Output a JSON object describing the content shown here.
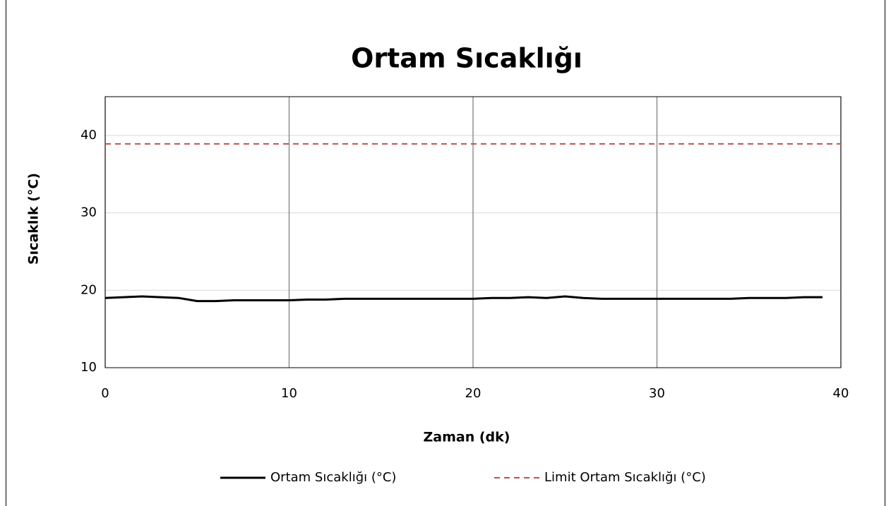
{
  "chart_data": {
    "type": "line",
    "title": "Ortam Sıcaklığı",
    "xlabel": "Zaman (dk)",
    "ylabel": "Sıcaklık (°C)",
    "xlim": [
      0,
      40
    ],
    "xticks": [
      0,
      10,
      20,
      30,
      40
    ],
    "ylim": [
      10,
      45
    ],
    "yticks": [
      10,
      20,
      30,
      40
    ],
    "grid": true,
    "legend": "bottom",
    "series": [
      {
        "name": "Ortam Sıcaklığı (°C)",
        "color": "#000000",
        "dash": false,
        "x": [
          0,
          1,
          2,
          3,
          4,
          5,
          6,
          7,
          8,
          9,
          10,
          11,
          12,
          13,
          14,
          15,
          16,
          17,
          18,
          19,
          20,
          21,
          22,
          23,
          24,
          25,
          26,
          27,
          28,
          29,
          30,
          31,
          32,
          33,
          34,
          35,
          36,
          37,
          38,
          39
        ],
        "values": [
          19.0,
          19.1,
          19.2,
          19.1,
          19.0,
          18.6,
          18.6,
          18.7,
          18.7,
          18.7,
          18.7,
          18.8,
          18.8,
          18.9,
          18.9,
          18.9,
          18.9,
          18.9,
          18.9,
          18.9,
          18.9,
          19.0,
          19.0,
          19.1,
          19.0,
          19.2,
          19.0,
          18.9,
          18.9,
          18.9,
          18.9,
          18.9,
          18.9,
          18.9,
          18.9,
          19.0,
          19.0,
          19.0,
          19.1,
          19.1
        ]
      },
      {
        "name": "Limit Ortam Sıcaklığı (°C)",
        "color": "#c0504d",
        "dash": true,
        "x": [
          0,
          40
        ],
        "values": [
          38.9,
          38.9
        ]
      }
    ]
  }
}
